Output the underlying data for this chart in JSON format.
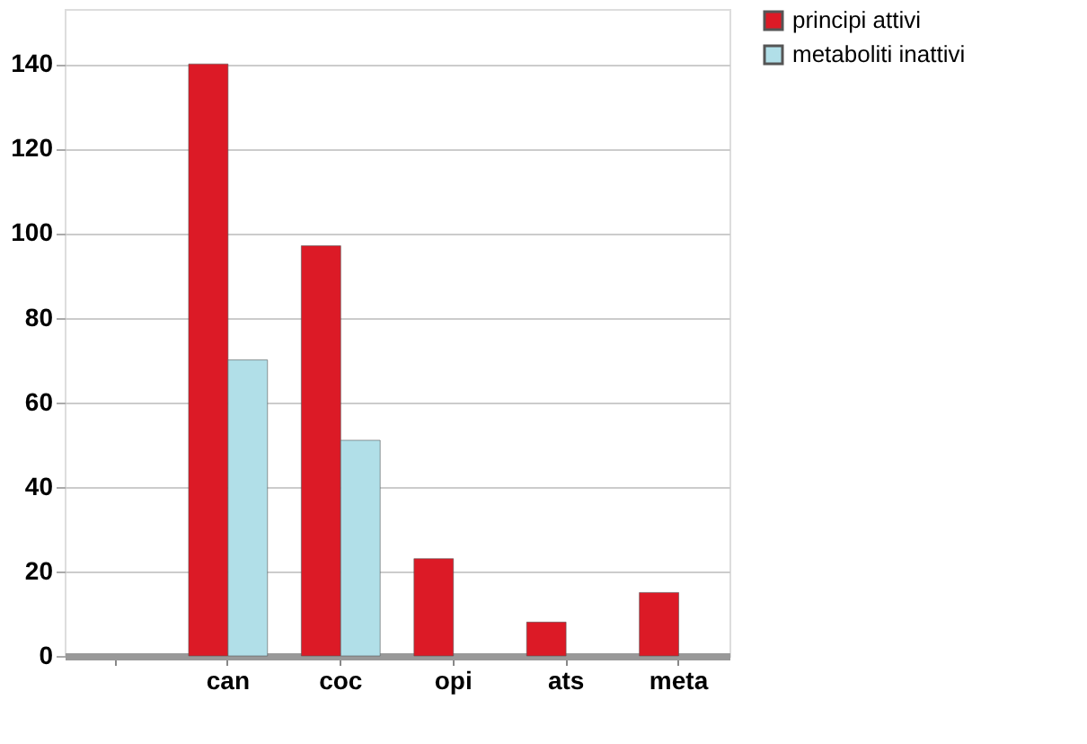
{
  "chart_data": {
    "type": "bar",
    "categories": [
      null,
      "can",
      "coc",
      "opi",
      "ats",
      "meta"
    ],
    "series": [
      {
        "name": "principi attivi",
        "color": "#dc1a26",
        "values": [
          null,
          140,
          97,
          23,
          8,
          15
        ]
      },
      {
        "name": "metaboliti inattivi",
        "color": "#b1dfe8",
        "values": [
          null,
          70,
          51,
          null,
          null,
          null
        ]
      }
    ],
    "ylim": [
      0,
      153
    ],
    "yticks": [
      0,
      20,
      40,
      60,
      80,
      100,
      120,
      140
    ],
    "grid": "y",
    "legend": "right"
  }
}
